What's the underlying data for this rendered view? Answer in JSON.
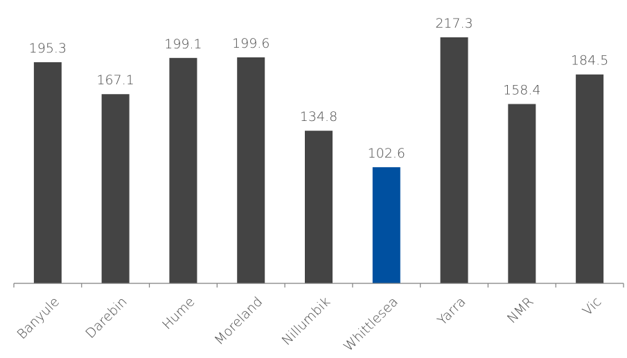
{
  "chart_data": {
    "type": "bar",
    "categories": [
      "Banyule",
      "Darebin",
      "Hume",
      "Moreland",
      "Nillumbik",
      "Whittlesea",
      "Yarra",
      "NMR",
      "Vic"
    ],
    "values": [
      195.3,
      167.1,
      199.1,
      199.6,
      134.8,
      102.6,
      217.3,
      158.4,
      184.5
    ],
    "value_labels": [
      "195.3",
      "167.1",
      "199.1",
      "199.6",
      "134.8",
      "102.6",
      "217.3",
      "158.4",
      "184.5"
    ],
    "highlight_category": "Whittlesea",
    "ylim": [
      0,
      230
    ],
    "grid": false,
    "legend": "none",
    "colors": {
      "bar": "#444444",
      "highlight": "#0050a0",
      "axis": "#7f7f7f",
      "text": "#4a4a4a"
    }
  }
}
